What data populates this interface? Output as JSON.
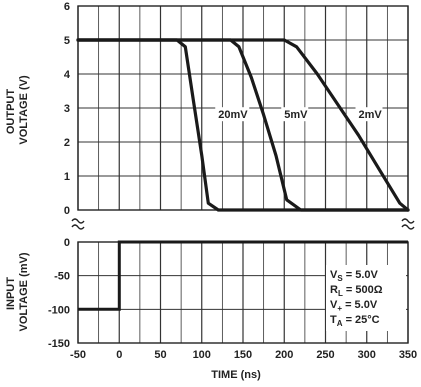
{
  "chart_data": [
    {
      "type": "line",
      "panel": "output",
      "ylabel_lines": [
        "OUTPUT",
        "VOLTAGE (V)"
      ],
      "ylim": [
        0,
        6
      ],
      "yticks": [
        "0",
        "1",
        "2",
        "3",
        "4",
        "5",
        "6"
      ],
      "xlim": [
        -50,
        350
      ],
      "grid": true,
      "series": [
        {
          "name": "20mV",
          "x": [
            -50,
            70,
            80,
            90,
            100,
            108,
            120,
            350
          ],
          "y": [
            5,
            5,
            4.8,
            3.2,
            1.6,
            0.2,
            0,
            0
          ]
        },
        {
          "name": "5mV",
          "x": [
            -50,
            135,
            145,
            160,
            175,
            190,
            203,
            220,
            350
          ],
          "y": [
            5,
            5,
            4.8,
            3.9,
            2.8,
            1.6,
            0.3,
            0,
            0
          ]
        },
        {
          "name": "2mV",
          "x": [
            -50,
            200,
            215,
            240,
            265,
            290,
            315,
            340,
            350
          ],
          "y": [
            5,
            5,
            4.8,
            4.0,
            3.1,
            2.2,
            1.2,
            0.2,
            0
          ]
        }
      ],
      "annotations": [
        {
          "text": "20mV",
          "x": 120,
          "y": 2.7
        },
        {
          "text": "5mV",
          "x": 200,
          "y": 2.7
        },
        {
          "text": "2mV",
          "x": 290,
          "y": 2.7
        }
      ]
    },
    {
      "type": "line",
      "panel": "input",
      "ylabel_lines": [
        "INPUT",
        "VOLTAGE (mV)"
      ],
      "ylim": [
        -150,
        0
      ],
      "yticks": [
        "0",
        "-50",
        "-100",
        "-150"
      ],
      "xlim": [
        -50,
        350
      ],
      "xticks": [
        "-50",
        "0",
        "50",
        "100",
        "150",
        "200",
        "250",
        "300",
        "350"
      ],
      "xlabel": "TIME (ns)",
      "grid": true,
      "series": [
        {
          "name": "input step",
          "x": [
            -50,
            0,
            0,
            350
          ],
          "y": [
            -100,
            -100,
            0,
            0
          ]
        }
      ],
      "conditions": [
        {
          "main": "V",
          "sub": "S",
          "rest": " = 5.0V"
        },
        {
          "main": "R",
          "sub": "L",
          "rest": " = 500Ω"
        },
        {
          "main": "V",
          "sub": "+",
          "rest": " = 5.0V"
        },
        {
          "main": "T",
          "sub": "A",
          "rest": " = 25°C"
        }
      ]
    }
  ]
}
